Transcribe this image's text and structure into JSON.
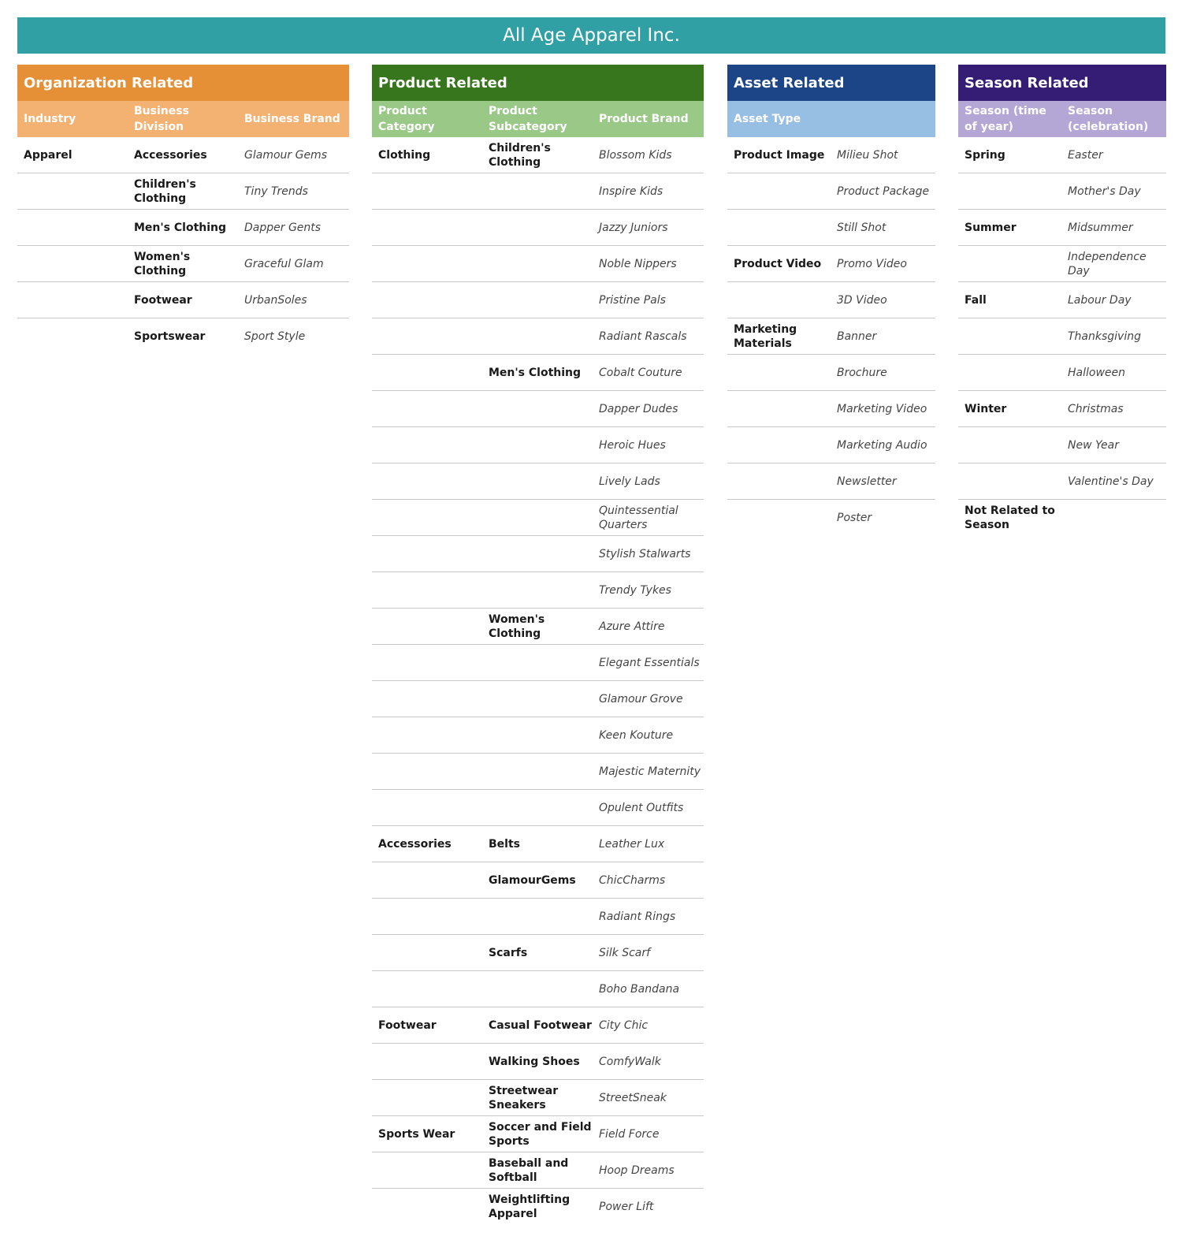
{
  "title": "All Age Apparel Inc.",
  "colors": {
    "banner": "#31a0a4",
    "org": "#e59036",
    "org_sub": "#f4b272",
    "product": "#38761d",
    "product_sub": "#99c887",
    "asset": "#1c4587",
    "asset_sub": "#97bfe3",
    "season": "#351c75",
    "season_sub": "#b4a7d6"
  },
  "panels": [
    {
      "title": "Organization Related",
      "headers": [
        "Industry",
        "Business Division",
        "Business Brand"
      ],
      "rows": [
        [
          "Apparel",
          "Accessories",
          "Glamour Gems"
        ],
        [
          "",
          "Children's Clothing",
          "Tiny Trends"
        ],
        [
          "",
          "Men's Clothing",
          "Dapper Gents"
        ],
        [
          "",
          "Women's Clothing",
          "Graceful Glam"
        ],
        [
          "",
          "Footwear",
          "UrbanSoles"
        ],
        [
          "",
          "Sportswear",
          "Sport Style"
        ]
      ]
    },
    {
      "title": "Product Related",
      "headers": [
        "Product Category",
        "Product Subcategory",
        "Product Brand"
      ],
      "rows": [
        [
          "Clothing",
          "Children's Clothing",
          "Blossom Kids"
        ],
        [
          "",
          "",
          "Inspire Kids"
        ],
        [
          "",
          "",
          "Jazzy Juniors"
        ],
        [
          "",
          "",
          "Noble Nippers"
        ],
        [
          "",
          "",
          "Pristine Pals"
        ],
        [
          "",
          "",
          "Radiant Rascals"
        ],
        [
          "",
          "Men's Clothing",
          "Cobalt Couture"
        ],
        [
          "",
          "",
          "Dapper Dudes"
        ],
        [
          "",
          "",
          "Heroic Hues"
        ],
        [
          "",
          "",
          "Lively Lads"
        ],
        [
          "",
          "",
          "Quintessential Quarters"
        ],
        [
          "",
          "",
          "Stylish Stalwarts"
        ],
        [
          "",
          "",
          "Trendy Tykes"
        ],
        [
          "",
          "Women's Clothing",
          "Azure Attire"
        ],
        [
          "",
          "",
          "Elegant Essentials"
        ],
        [
          "",
          "",
          "Glamour Grove"
        ],
        [
          "",
          "",
          "Keen Kouture"
        ],
        [
          "",
          "",
          "Majestic Maternity"
        ],
        [
          "",
          "",
          "Opulent Outfits"
        ],
        [
          "Accessories",
          "Belts",
          "Leather Lux"
        ],
        [
          "",
          "GlamourGems",
          "ChicCharms"
        ],
        [
          "",
          "",
          "Radiant Rings"
        ],
        [
          "",
          "Scarfs",
          "Silk Scarf"
        ],
        [
          "",
          "",
          "Boho Bandana"
        ],
        [
          "Footwear",
          "Casual Footwear",
          "City Chic"
        ],
        [
          "",
          "Walking Shoes",
          "ComfyWalk"
        ],
        [
          "",
          "Streetwear Sneakers",
          "StreetSneak"
        ],
        [
          "Sports Wear",
          "Soccer and Field Sports",
          "Field Force"
        ],
        [
          "",
          "Baseball and Softball",
          "Hoop Dreams"
        ],
        [
          "",
          "Weightlifting Apparel",
          "Power Lift"
        ]
      ]
    },
    {
      "title": "Asset Related",
      "headers": [
        "Asset Type"
      ],
      "rows": [
        [
          "Product Image",
          "Milieu Shot"
        ],
        [
          "",
          "Product Package"
        ],
        [
          "",
          "Still Shot"
        ],
        [
          "Product Video",
          "Promo Video"
        ],
        [
          "",
          "3D Video"
        ],
        [
          "Marketing Materials",
          "Banner"
        ],
        [
          "",
          "Brochure"
        ],
        [
          "",
          "Marketing Video"
        ],
        [
          "",
          "Marketing Audio"
        ],
        [
          "",
          "Newsletter"
        ],
        [
          "",
          "Poster"
        ]
      ]
    },
    {
      "title": "Season Related",
      "headers": [
        "Season (time of year)",
        "Season (celebration)"
      ],
      "rows": [
        [
          "Spring",
          "Easter"
        ],
        [
          "",
          "Mother's Day"
        ],
        [
          "Summer",
          "Midsummer"
        ],
        [
          "",
          "Independence Day"
        ],
        [
          "Fall",
          "Labour Day"
        ],
        [
          "",
          "Thanksgiving"
        ],
        [
          "",
          "Halloween"
        ],
        [
          "Winter",
          "Christmas"
        ],
        [
          "",
          "New Year"
        ],
        [
          "",
          "Valentine's Day"
        ],
        [
          "Not Related to Season",
          ""
        ]
      ]
    }
  ]
}
